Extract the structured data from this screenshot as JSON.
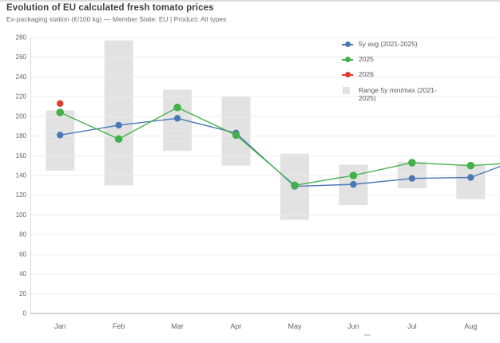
{
  "header": {
    "title": "Evolution of EU calculated fresh tomato prices",
    "subtitle": "Ex-packaging station (€/100 kg) — Member State: EU | Product: All types"
  },
  "legend": {
    "items": [
      {
        "label": "5y avg (2021-2025)",
        "marker": "line-dot",
        "color": "#4a78b5"
      },
      {
        "label": "2025",
        "marker": "line-dot",
        "color": "#43b149"
      },
      {
        "label": "2026",
        "marker": "line-dot",
        "color": "#e6392b"
      },
      {
        "label": "Range 5y min/max (2021-2025)",
        "marker": "box",
        "color": "#e2e2e2"
      }
    ]
  },
  "chart_data": {
    "type": "line",
    "title": "Evolution of EU calculated fresh tomato prices",
    "subtitle": "Ex-packaging station (€/100 kg) — Member State: EU | Product: All types",
    "categories": [
      "Jan",
      "Feb",
      "Mar",
      "Apr",
      "May",
      "Jun",
      "Jul",
      "Aug"
    ],
    "y_axis": {
      "min": 0,
      "max": 280,
      "tick_step": 20
    },
    "grid": true,
    "legend_position": "top-right",
    "series": [
      {
        "name": "5y avg (2021-2025)",
        "color": "#4a78b5",
        "values": [
          181,
          191,
          198,
          183,
          129,
          131,
          137,
          138
        ],
        "edge_continuation_value": 150
      },
      {
        "name": "2025",
        "color": "#43b149",
        "values": [
          204,
          177,
          209,
          181,
          130,
          140,
          153,
          150
        ],
        "edge_continuation_value": 152
      },
      {
        "name": "2026",
        "color": "#e6392b",
        "values": [
          213,
          null,
          null,
          null,
          null,
          null,
          null,
          null
        ],
        "edge_continuation_value": null
      }
    ],
    "range_series": {
      "name": "Range 5y min/max (2021-2025)",
      "color": "#e2e2e2",
      "min": [
        145,
        130,
        165,
        150,
        95,
        110,
        127,
        116
      ],
      "max": [
        206,
        277,
        227,
        220,
        162,
        151,
        154,
        150
      ]
    },
    "colors": {
      "grid_line": "#ececec",
      "axis_line_bottom": "#a8a8a8",
      "axis_line_left": "#d9d9d9",
      "tick_label": "#666666"
    }
  }
}
